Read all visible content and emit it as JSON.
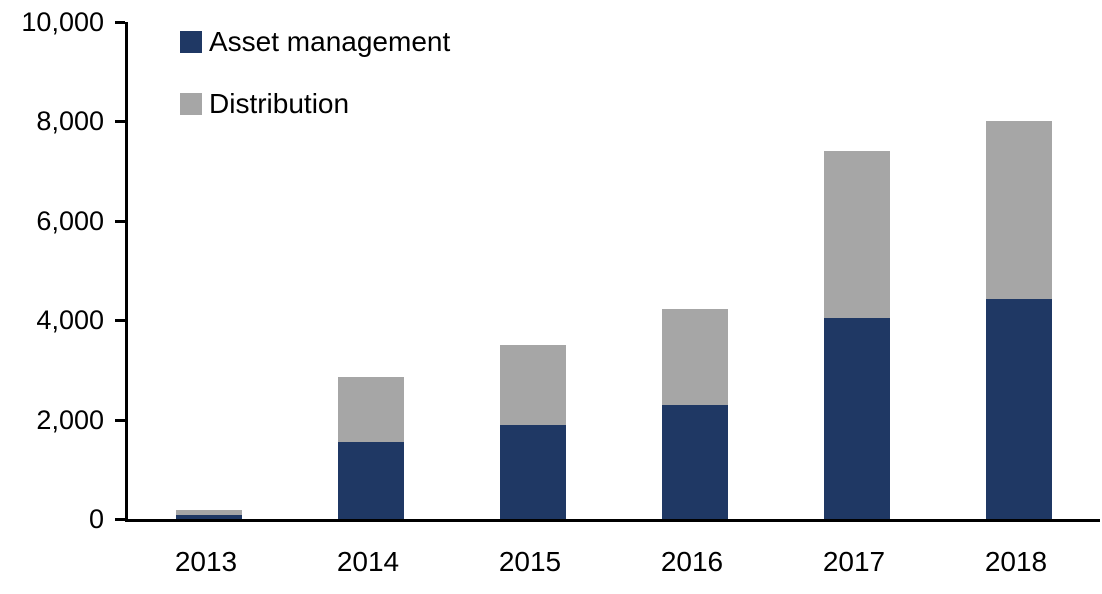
{
  "chart_data": {
    "type": "bar",
    "stacked": true,
    "title": "",
    "xlabel": "",
    "ylabel": "",
    "categories": [
      "2013",
      "2014",
      "2015",
      "2016",
      "2017",
      "2018"
    ],
    "series": [
      {
        "name": "Asset management",
        "color": "#1F3864",
        "values": [
          80,
          1550,
          1900,
          2300,
          4050,
          4420
        ]
      },
      {
        "name": "Distribution",
        "color": "#A6A6A6",
        "values": [
          110,
          1300,
          1600,
          1930,
          3350,
          3580
        ]
      }
    ],
    "totals": [
      190,
      2850,
      3500,
      4230,
      7400,
      8000
    ],
    "ylim": [
      0,
      10000
    ],
    "ytick_step": 2000,
    "ytick_labels": [
      "0",
      "2,000",
      "4,000",
      "6,000",
      "8,000",
      "10,000"
    ],
    "grid": false,
    "legend_position": "top-left-inside",
    "axis_color": "#000000",
    "background_color": "#FFFFFF"
  }
}
